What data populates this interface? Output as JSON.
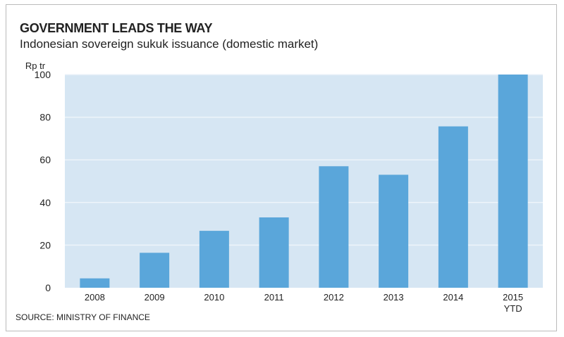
{
  "chart_data": {
    "type": "bar",
    "title": "GOVERNMENT LEADS THE WAY",
    "subtitle": "Indonesian sovereign sukuk issuance (domestic market)",
    "ylabel": "Rp tr",
    "ylim": [
      0,
      100
    ],
    "yticks": [
      0,
      20,
      40,
      60,
      80,
      100
    ],
    "grid": true,
    "categories": [
      "2008",
      "2009",
      "2010",
      "2011",
      "2012",
      "2013",
      "2014",
      "2015\nYTD"
    ],
    "values": [
      4.4,
      16.4,
      26.7,
      33.0,
      57.0,
      53.0,
      75.7,
      100
    ],
    "source": "SOURCE: MINISTRY OF FINANCE",
    "colors": {
      "bar": "#5aa6da",
      "plot_bg": "#d6e6f3",
      "grid": "#eef4fa"
    }
  }
}
